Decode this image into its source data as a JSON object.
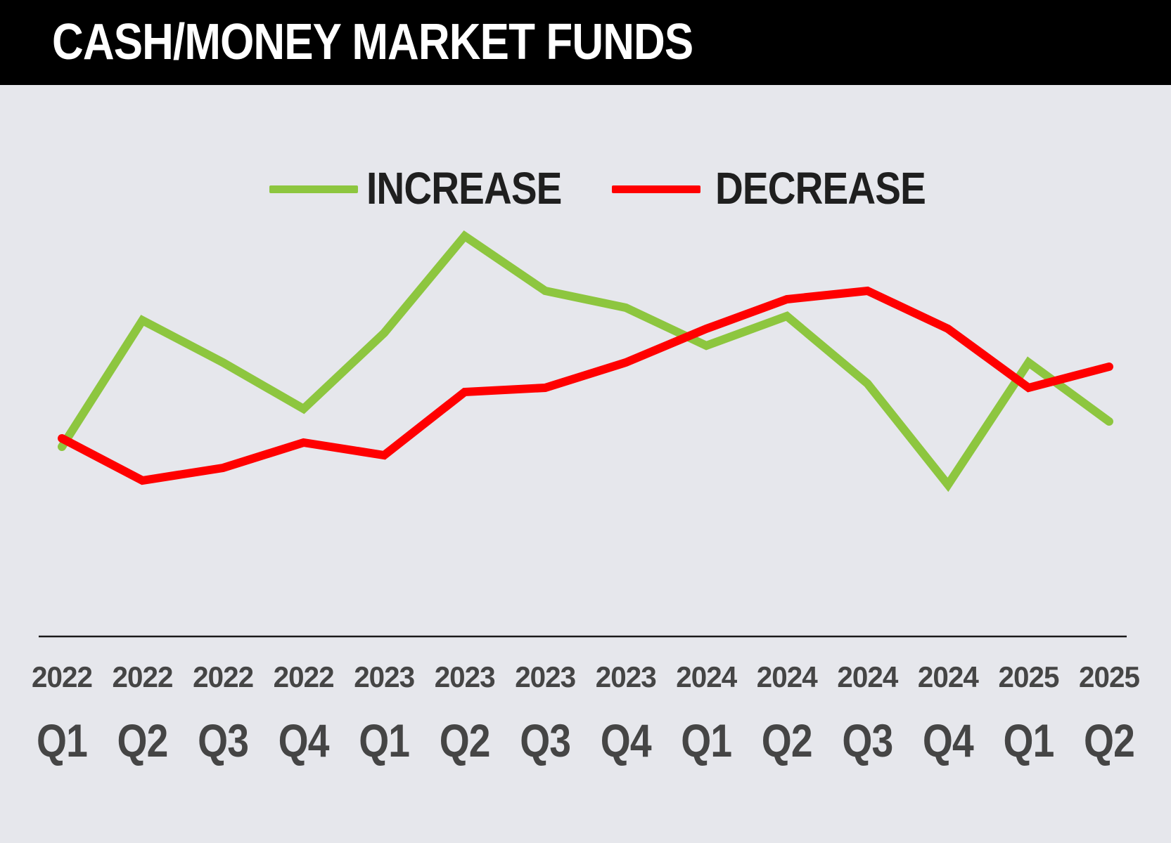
{
  "header": {
    "title": "CASH/MONEY MARKET FUNDS"
  },
  "colors": {
    "increase": "#8dc63f",
    "decrease": "#ff0000",
    "axis": "#1a1a1a",
    "ticks": "#454545"
  },
  "chart_data": {
    "type": "line",
    "title": "CASH/MONEY MARKET FUNDS",
    "xlabel": "",
    "ylabel": "",
    "y_axis_shown": false,
    "grid": false,
    "legend_position": "top-center",
    "legend": [
      "INCREASE",
      "DECREASE"
    ],
    "categories": [
      {
        "year": "2022",
        "quarter": "Q1"
      },
      {
        "year": "2022",
        "quarter": "Q2"
      },
      {
        "year": "2022",
        "quarter": "Q3"
      },
      {
        "year": "2022",
        "quarter": "Q4"
      },
      {
        "year": "2023",
        "quarter": "Q1"
      },
      {
        "year": "2023",
        "quarter": "Q2"
      },
      {
        "year": "2023",
        "quarter": "Q3"
      },
      {
        "year": "2023",
        "quarter": "Q4"
      },
      {
        "year": "2024",
        "quarter": "Q1"
      },
      {
        "year": "2024",
        "quarter": "Q2"
      },
      {
        "year": "2024",
        "quarter": "Q3"
      },
      {
        "year": "2024",
        "quarter": "Q4"
      },
      {
        "year": "2025",
        "quarter": "Q1"
      },
      {
        "year": "2025",
        "quarter": "Q2"
      }
    ],
    "ylim": [
      0,
      100
    ],
    "series": [
      {
        "name": "INCREASE",
        "color": "#8dc63f",
        "values": [
          44,
          74,
          64,
          53,
          71,
          94,
          81,
          77,
          68,
          75,
          59,
          35,
          64,
          50
        ]
      },
      {
        "name": "DECREASE",
        "color": "#ff0000",
        "values": [
          46,
          36,
          39,
          45,
          42,
          57,
          58,
          64,
          72,
          79,
          81,
          72,
          58,
          63
        ]
      }
    ]
  }
}
